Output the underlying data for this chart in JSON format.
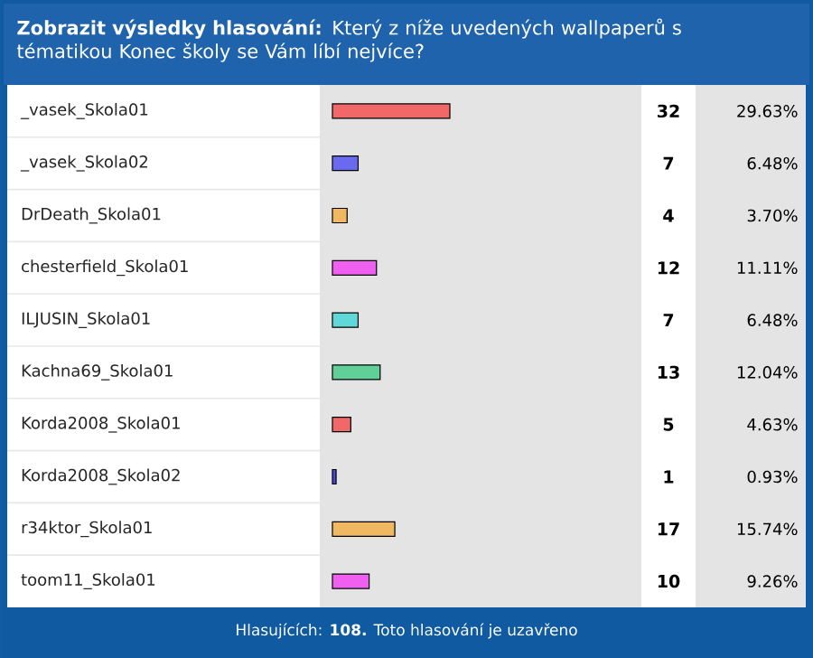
{
  "chart_data": {
    "type": "bar",
    "orientation": "horizontal",
    "title": "**Zobrazit výsledky hlasování:** Který z níže uvedených wallpaperů s tématikou Konec školy se Vám líbí nejvíce?",
    "categories": [
      "_vasek_Skola01",
      "_vasek_Skola02",
      "DrDeath_Skola01",
      "chesterfield_Skola01",
      "ILJUSIN_Skola01",
      "Kachna69_Skola01",
      "Korda2008_Skola01",
      "Korda2008_Skola02",
      "r34ktor_Skola01",
      "toom11_Skola01"
    ],
    "values": [
      32,
      7,
      4,
      12,
      7,
      13,
      5,
      1,
      17,
      10
    ],
    "colors": [
      "#f06868",
      "#6a6af0",
      "#f0b860",
      "#f060f0",
      "#60d8d8",
      "#60d098",
      "#f06868",
      "#4848d8",
      "#f0b860",
      "#f060f0"
    ],
    "value_labels": [
      "32",
      "7",
      "4",
      "12",
      "7",
      "13",
      "5",
      "1",
      "17",
      "10"
    ],
    "annotations": [
      "29.63%",
      "6.48%",
      "3.70%",
      "11.11%",
      "6.48%",
      "12.04%",
      "4.63%",
      "0.93%",
      "15.74%",
      "9.26%",
      "Hlasujících: **108.** Toto hlasování je uzavřeno"
    ]
  }
}
